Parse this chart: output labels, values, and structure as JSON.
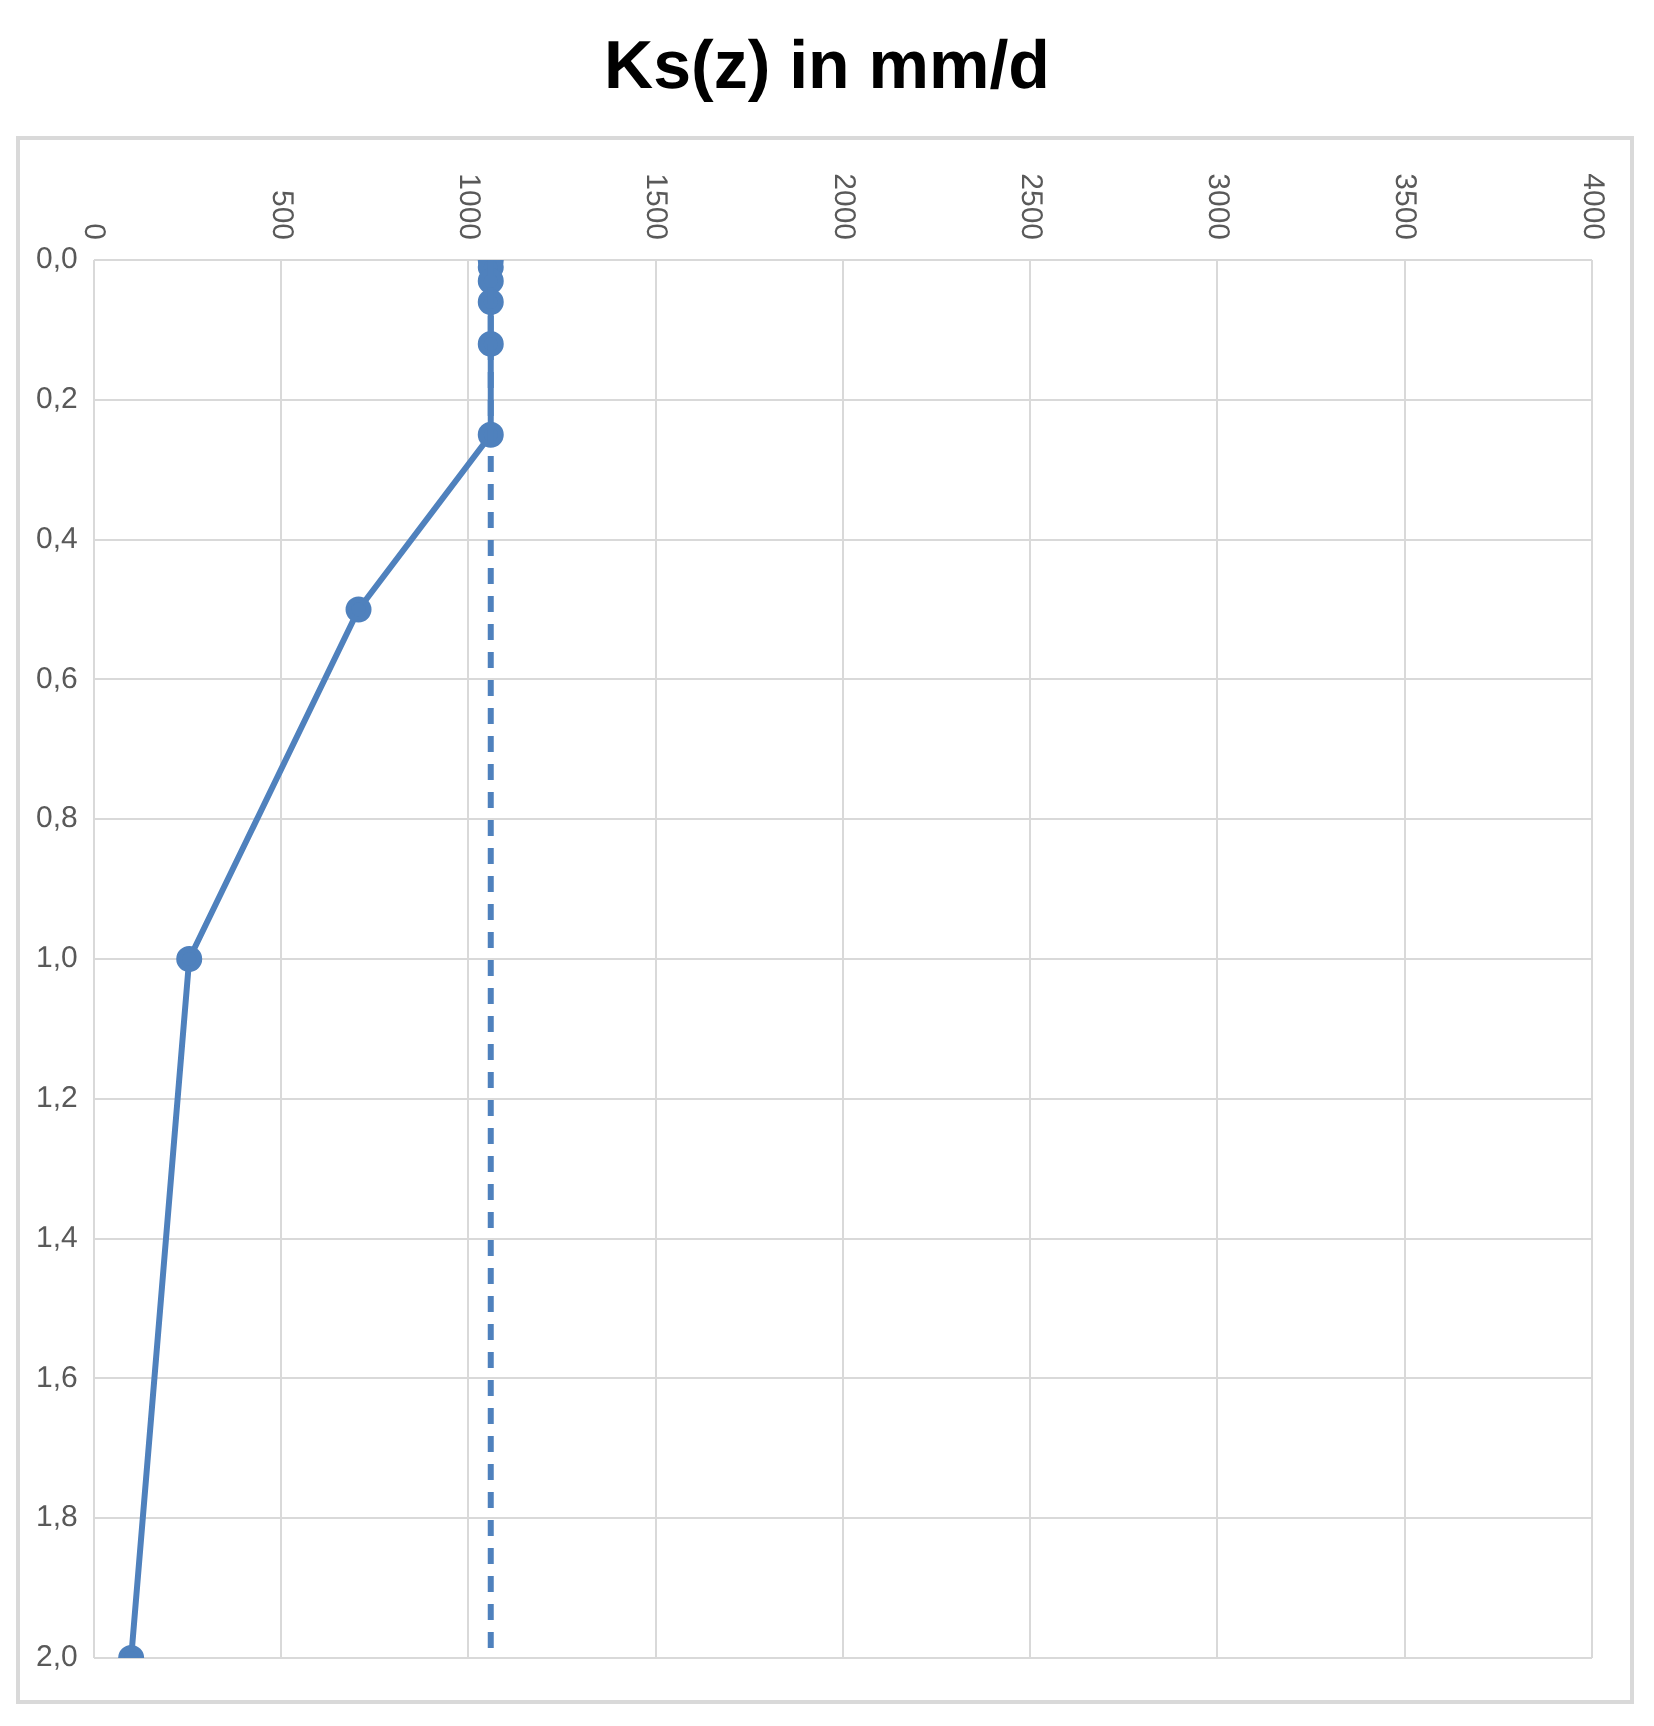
{
  "chart_data": {
    "type": "line",
    "title": "Ks(z) in mm/d",
    "series": [
      {
        "color": "#4f81bd",
        "x": [
          1060,
          1060,
          1060,
          1060,
          1060,
          1060,
          707,
          255,
          100
        ],
        "values": [
          0,
          0.01,
          0.03,
          0.06,
          0.12,
          0.25,
          0.5,
          1.0,
          2.0
        ]
      }
    ],
    "xlim": [
      0,
      4000
    ],
    "xticks": [
      0,
      500,
      1000,
      1500,
      2000,
      2500,
      3000,
      3500,
      4000
    ],
    "ylim": [
      2.0,
      0
    ],
    "yticks": [
      {
        "value": 0,
        "label": "0,0"
      },
      {
        "value": 0.2,
        "label": "0,2"
      },
      {
        "value": 0.4,
        "label": "0,4"
      },
      {
        "value": 0.6,
        "label": "0,6"
      },
      {
        "value": 0.8,
        "label": "0,8"
      },
      {
        "value": 1.0,
        "label": "1,0"
      },
      {
        "value": 1.2,
        "label": "1,2"
      },
      {
        "value": 1.4,
        "label": "1,4"
      },
      {
        "value": 1.6,
        "label": "1,6"
      },
      {
        "value": 1.8,
        "label": "1,8"
      },
      {
        "value": 2.0,
        "label": "2,0"
      }
    ],
    "ref_lines": [
      {
        "axis": "x",
        "value": 1060,
        "color": "#4f81bd",
        "line_style": "dashed"
      }
    ],
    "grid": true,
    "legend": false,
    "marker": "circle",
    "line_style": "solid"
  }
}
